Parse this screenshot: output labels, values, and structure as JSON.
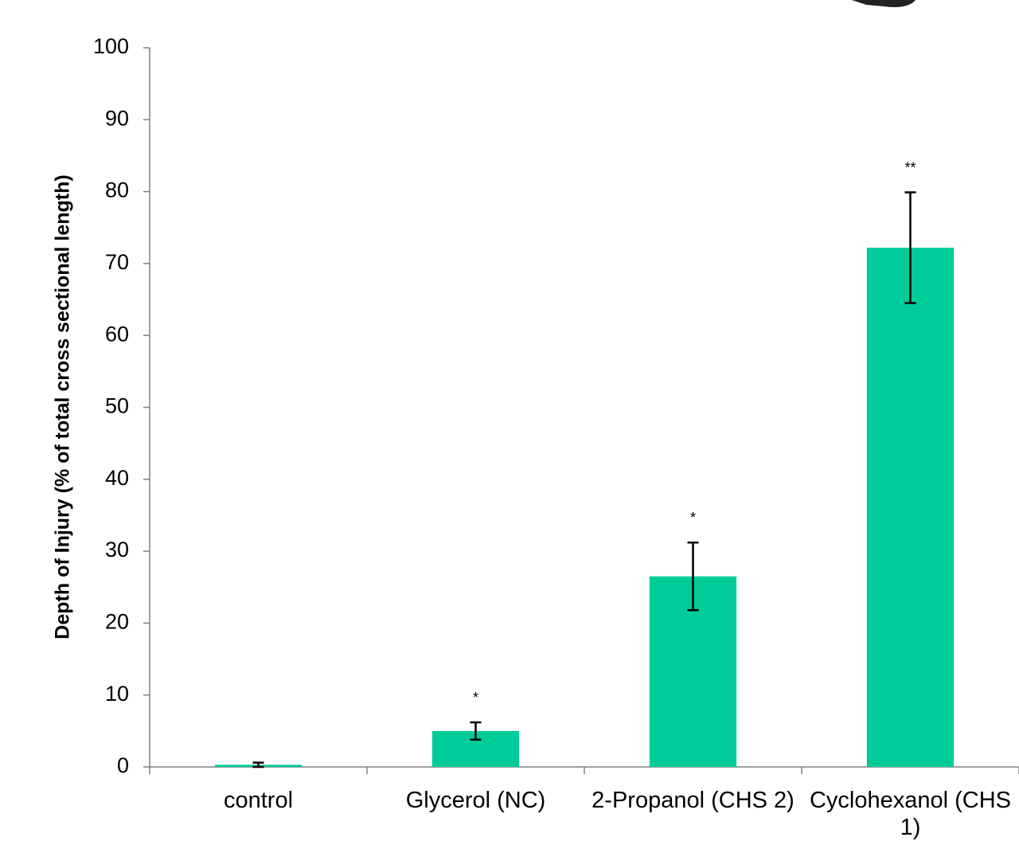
{
  "chart_data": {
    "type": "bar",
    "ylabel": "Depth of Injury (% of total cross sectional length)",
    "categories": [
      "control",
      "Glycerol (NC)",
      "2-Propanol (CHS 2)",
      "Cyclohexanol (CHS 1)"
    ],
    "values": [
      0.3,
      5.0,
      26.5,
      72.2
    ],
    "errors": [
      0.3,
      1.2,
      4.7,
      7.7
    ],
    "annotations": [
      null,
      "*",
      "*",
      "**"
    ],
    "color": "#00cc99",
    "ylim": [
      0,
      100
    ],
    "yticks": [
      0,
      10,
      20,
      30,
      40,
      50,
      60,
      70,
      80,
      90,
      100
    ],
    "grid": false
  }
}
